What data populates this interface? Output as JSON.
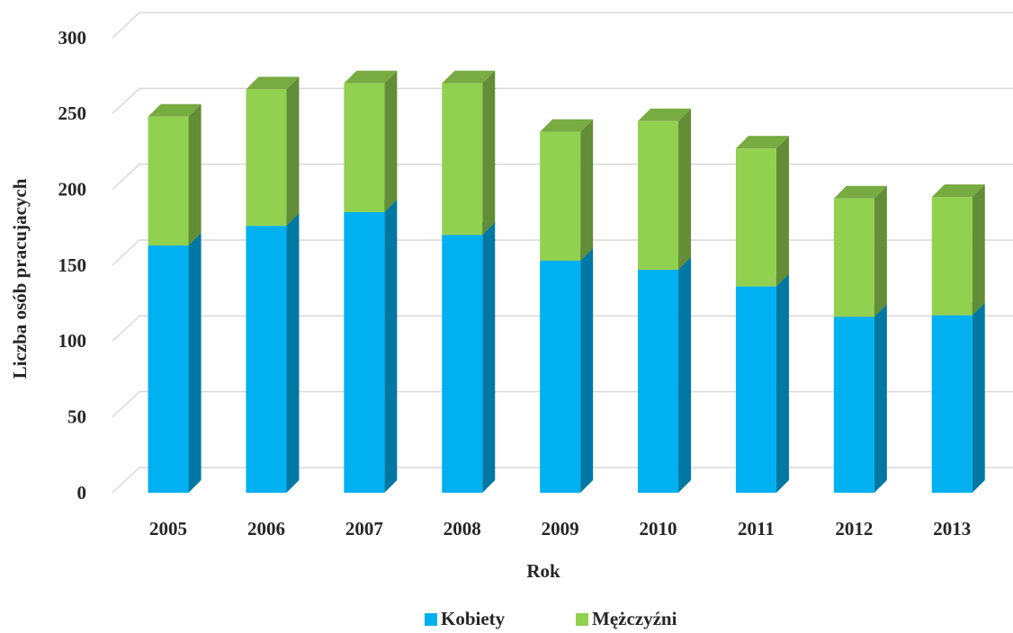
{
  "chart_data": {
    "type": "bar",
    "stacked": true,
    "three_d": true,
    "x_label": "Rok",
    "y_label": "Liczba osób pracujacych",
    "categories": [
      "2005",
      "2006",
      "2007",
      "2008",
      "2009",
      "2010",
      "2011",
      "2012",
      "2013"
    ],
    "series": [
      {
        "name": "Kobiety",
        "color": "#00b0f0",
        "values": [
          163,
          176,
          185,
          170,
          153,
          147,
          136,
          116,
          117
        ]
      },
      {
        "name": "Mężczyźni",
        "color": "#92d050",
        "values": [
          85,
          90,
          85,
          100,
          85,
          98,
          91,
          78,
          78
        ]
      }
    ],
    "ylim": [
      0,
      300
    ],
    "yticks": [
      0,
      50,
      100,
      150,
      200,
      250,
      300
    ],
    "grid": true,
    "legend": "bottom"
  }
}
